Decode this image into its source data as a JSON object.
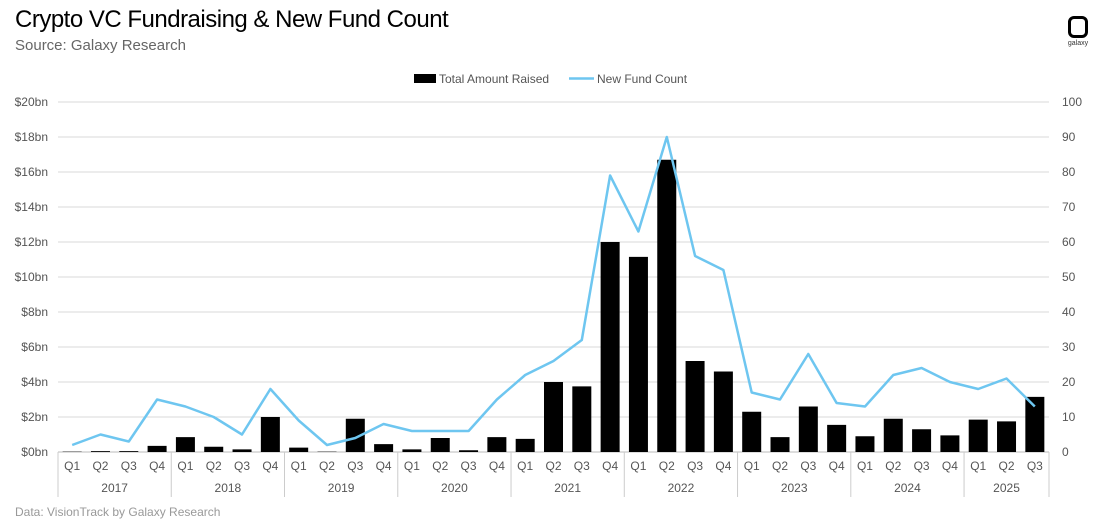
{
  "title": "Crypto VC Fundraising & New Fund Count",
  "subtitle": "Source: Galaxy Research",
  "footer": "Data: VisionTrack by Galaxy Research",
  "logo_text": "galaxy",
  "chart_data": {
    "type": "bar+line",
    "years": [
      "2017",
      "2018",
      "2019",
      "2020",
      "2021",
      "2022",
      "2023",
      "2024",
      "2025"
    ],
    "quarters": [
      "Q1",
      "Q2",
      "Q3",
      "Q4",
      "Q1",
      "Q2",
      "Q3",
      "Q4",
      "Q1",
      "Q2",
      "Q3",
      "Q4",
      "Q1",
      "Q2",
      "Q3",
      "Q4",
      "Q1",
      "Q2",
      "Q3",
      "Q4",
      "Q1",
      "Q2",
      "Q3",
      "Q4",
      "Q1",
      "Q2",
      "Q3",
      "Q4",
      "Q1",
      "Q2",
      "Q3",
      "Q4",
      "Q1",
      "Q2",
      "Q3"
    ],
    "left_axis": {
      "ylim": [
        0,
        20
      ],
      "ticks": [
        "$0bn",
        "$2bn",
        "$4bn",
        "$6bn",
        "$8bn",
        "$10bn",
        "$12bn",
        "$14bn",
        "$16bn",
        "$18bn",
        "$20bn"
      ]
    },
    "right_axis": {
      "ylim": [
        0,
        100
      ],
      "ticks": [
        "0",
        "10",
        "20",
        "30",
        "40",
        "50",
        "60",
        "70",
        "80",
        "90",
        "100"
      ]
    },
    "grid": true,
    "legend_position": "top",
    "series": [
      {
        "name": "Total Amount Raised",
        "type": "bar",
        "axis": "left",
        "color": "#000000",
        "values": [
          0.02,
          0.05,
          0.05,
          0.35,
          0.85,
          0.3,
          0.15,
          2.0,
          0.25,
          0.02,
          1.9,
          0.45,
          0.15,
          0.8,
          0.1,
          0.85,
          0.75,
          4.0,
          3.75,
          12.0,
          11.15,
          16.7,
          5.2,
          4.6,
          2.3,
          0.85,
          2.6,
          1.55,
          0.9,
          1.9,
          1.3,
          0.95,
          1.85,
          1.75,
          3.15
        ]
      },
      {
        "name": "New Fund Count",
        "type": "line",
        "axis": "right",
        "color": "#6EC6F0",
        "values": [
          2,
          5,
          3,
          15,
          13,
          10,
          5,
          18,
          9,
          2,
          4,
          8,
          6,
          6,
          6,
          15,
          22,
          26,
          32,
          79,
          63,
          90,
          56,
          52,
          17,
          15,
          28,
          14,
          13,
          22,
          24,
          20,
          18,
          21,
          13
        ]
      }
    ]
  }
}
